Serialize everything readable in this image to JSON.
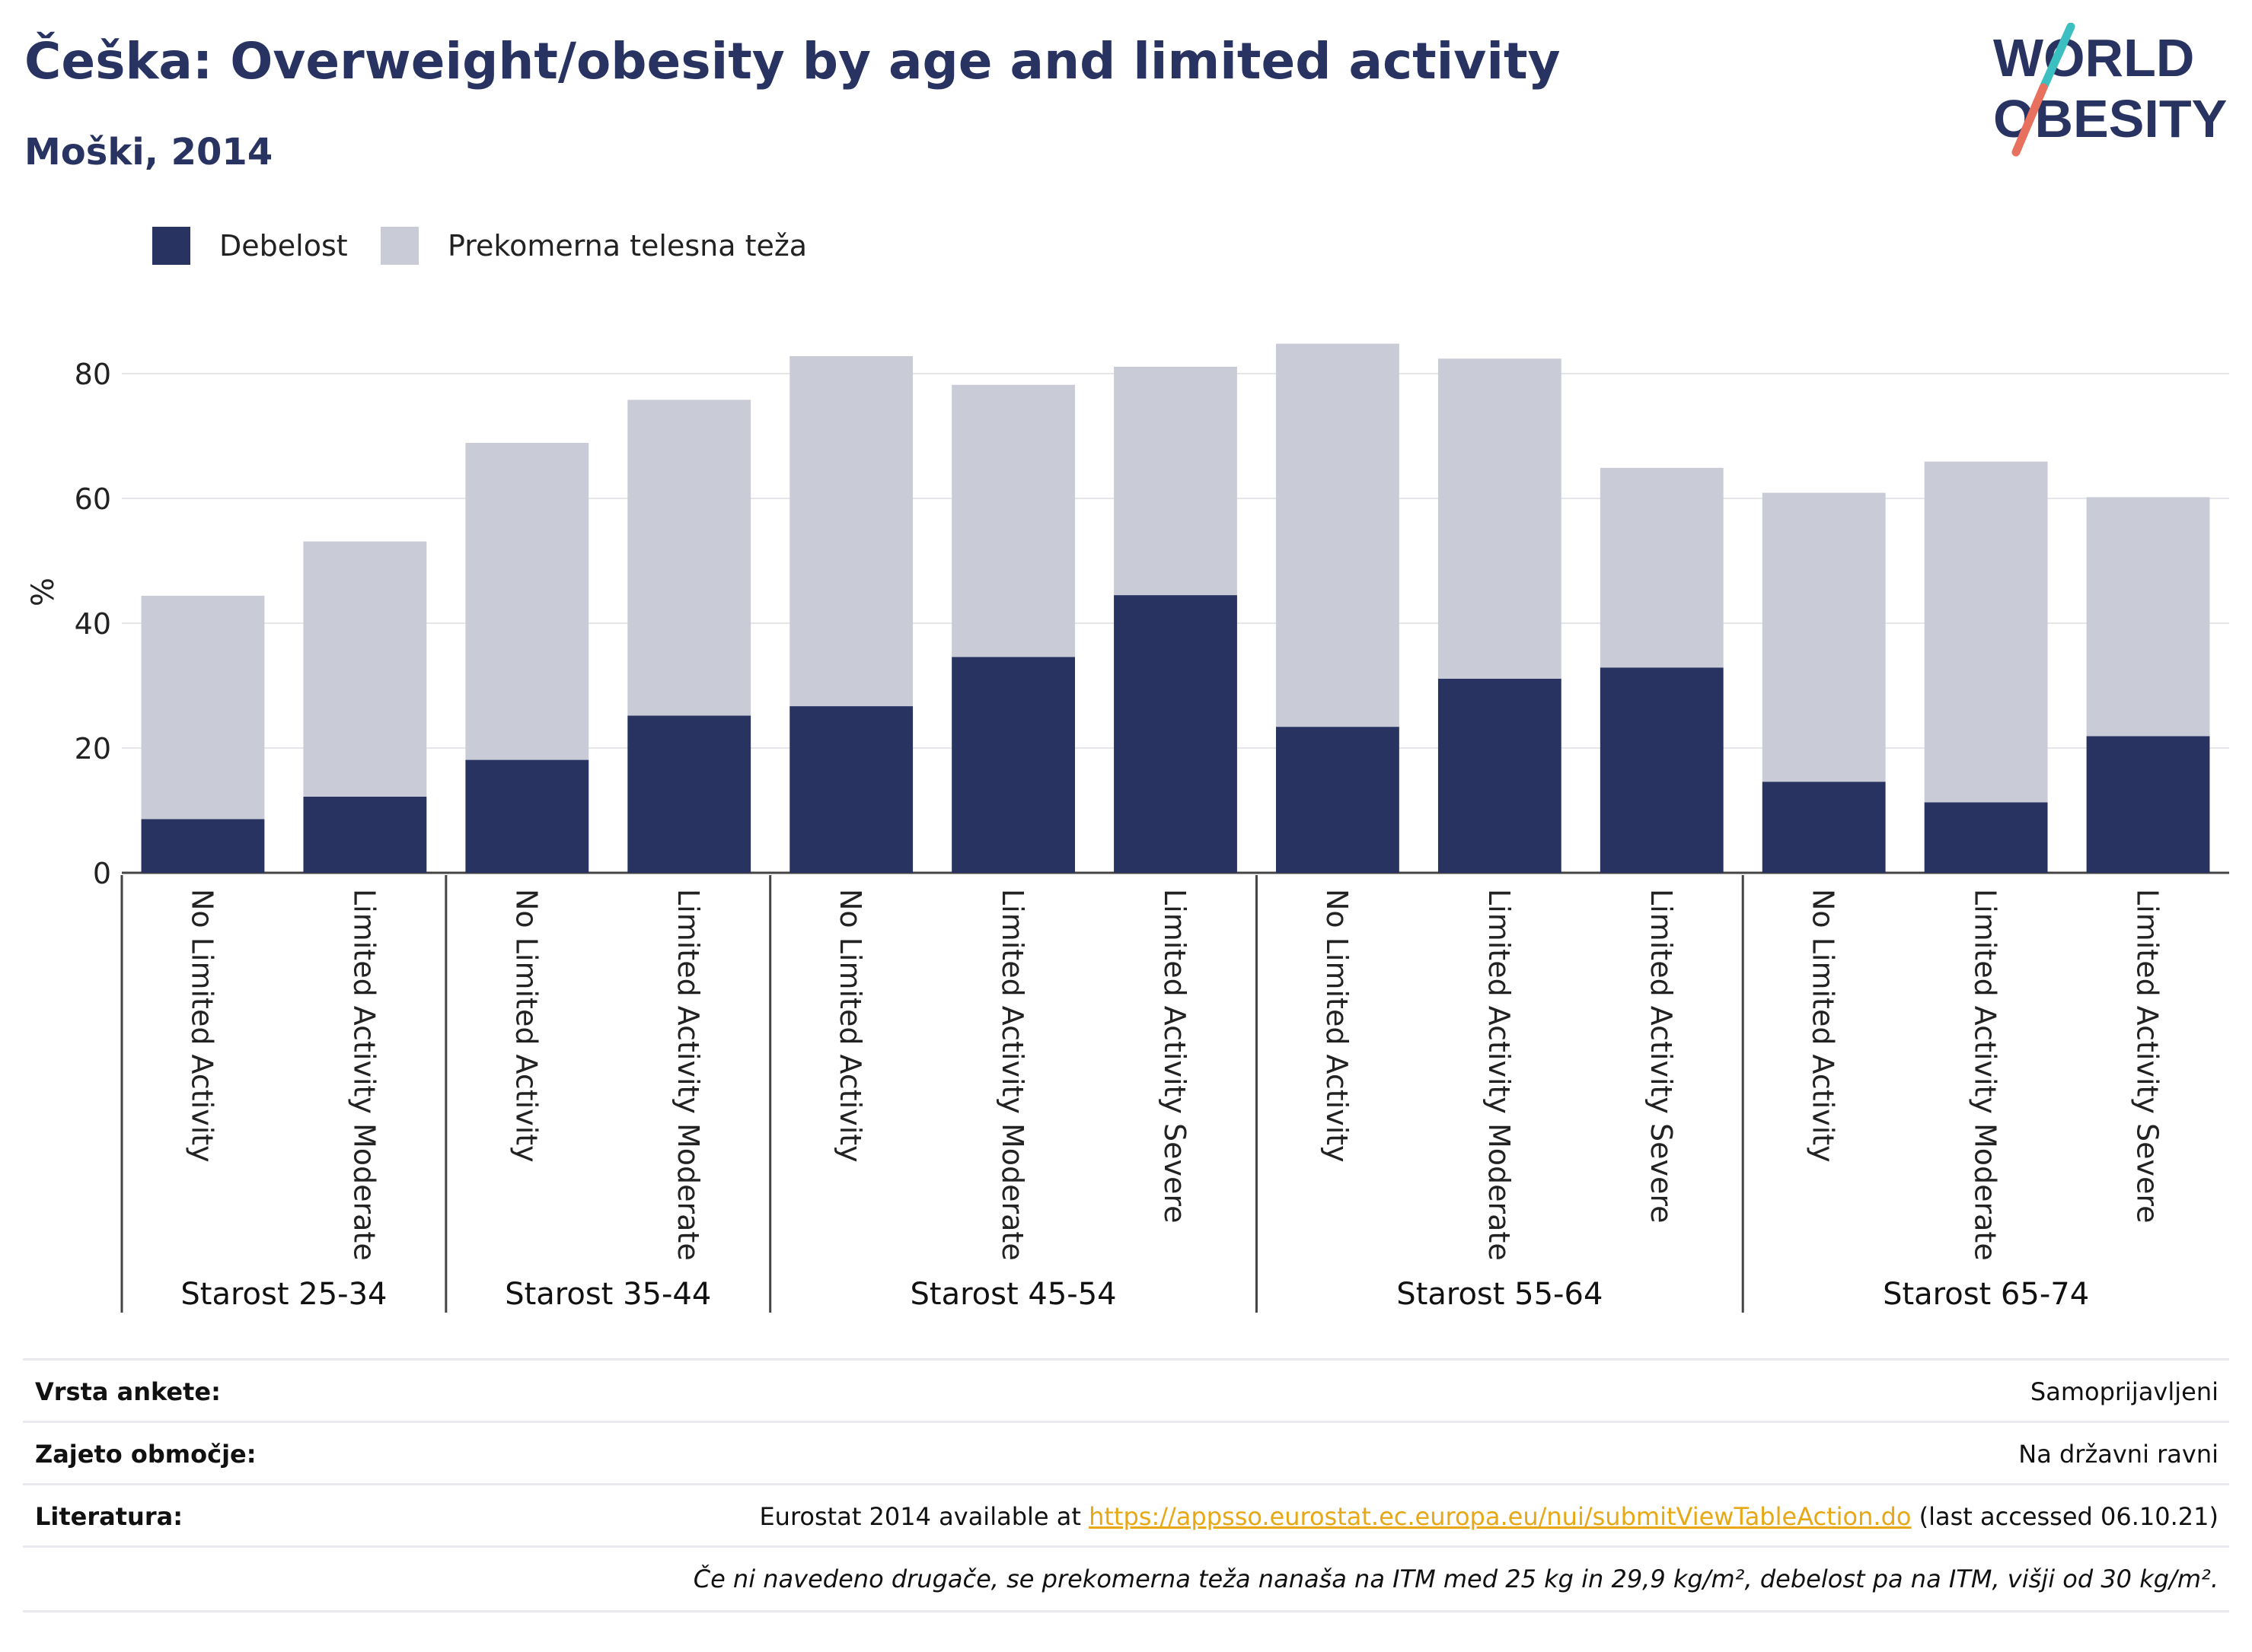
{
  "header": {
    "title": "Češka: Overweight/obesity by age and limited activity",
    "subtitle": "Moški, 2014"
  },
  "logo": {
    "line1": "WORLD",
    "line2": "OBESITY"
  },
  "colors": {
    "obesity": "#283361",
    "overweight": "#c9cbd7",
    "title": "#283361",
    "link": "#e6a817",
    "grid": "#e6e6ea"
  },
  "chart_data": {
    "type": "bar",
    "stacked": true,
    "ylabel": "%",
    "ylim": [
      0,
      90
    ],
    "yticks": [
      0,
      20,
      40,
      60,
      80
    ],
    "grid": true,
    "legend_position": "top-left",
    "legend": [
      "Debelost",
      "Prekomerna telesna teža"
    ],
    "groups": [
      {
        "label": "Starost 25-34",
        "categories": [
          "No Limited Activity",
          "Limited Activity Moderate"
        ]
      },
      {
        "label": "Starost 35-44",
        "categories": [
          "No Limited Activity",
          "Limited Activity Moderate"
        ]
      },
      {
        "label": "Starost 45-54",
        "categories": [
          "No Limited Activity",
          "Limited Activity Moderate",
          "Limited Activity Severe"
        ]
      },
      {
        "label": "Starost 55-64",
        "categories": [
          "No Limited Activity",
          "Limited Activity Moderate",
          "Limited Activity Severe"
        ]
      },
      {
        "label": "Starost 65-74",
        "categories": [
          "No Limited Activity",
          "Limited Activity Moderate",
          "Limited Activity Severe"
        ]
      }
    ],
    "series": [
      {
        "name": "Debelost",
        "values": [
          8.6,
          12.2,
          18.1,
          25.2,
          26.7,
          34.6,
          44.5,
          23.4,
          31.1,
          32.9,
          14.6,
          11.3,
          21.9
        ]
      },
      {
        "name": "Prekomerna telesna teža",
        "values": [
          35.8,
          40.9,
          50.8,
          50.6,
          56.1,
          43.6,
          36.6,
          61.4,
          51.3,
          32.0,
          46.3,
          54.6,
          38.3
        ]
      }
    ]
  },
  "meta": {
    "survey_type_label": "Vrsta ankete:",
    "survey_type_value": "Samoprijavljeni",
    "coverage_label": "Zajeto območje:",
    "coverage_value": "Na državni ravni",
    "references_label": "Literatura:",
    "references_prefix": "Eurostat 2014 available at ",
    "references_link": "https://appsso.eurostat.ec.europa.eu/nui/submitViewTableAction.do",
    "references_suffix": " (last accessed 06.10.21)",
    "note": "Če ni navedeno drugače, se prekomerna teža nanaša na ITM med 25 kg in 29,9 kg/m², debelost pa na ITM, višji od 30 kg/m²."
  }
}
